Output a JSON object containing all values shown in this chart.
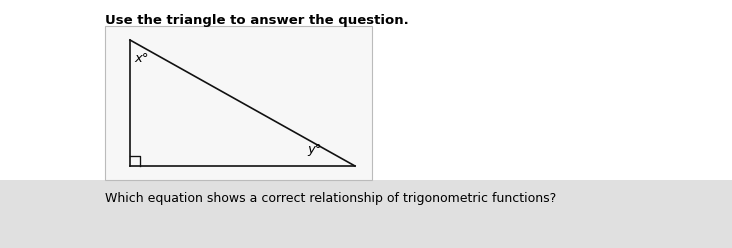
{
  "title": "Use the triangle to answer the question.",
  "title_fontsize": 9.5,
  "title_fontweight": "bold",
  "question_text": "Which equation shows a correct relationship of trigonometric functions?",
  "question_fontsize": 9,
  "bg_color": "#ffffff",
  "question_bg_color": "#e0e0e0",
  "box_bg_color": "#f7f7f7",
  "box_border_color": "#bbbbbb",
  "triangle_color": "#111111",
  "triangle_linewidth": 1.2,
  "label_x_text": "x°",
  "label_y_text": "y°",
  "label_fontsize": 9.5,
  "fig_width": 7.32,
  "fig_height": 2.48,
  "dpi": 100
}
